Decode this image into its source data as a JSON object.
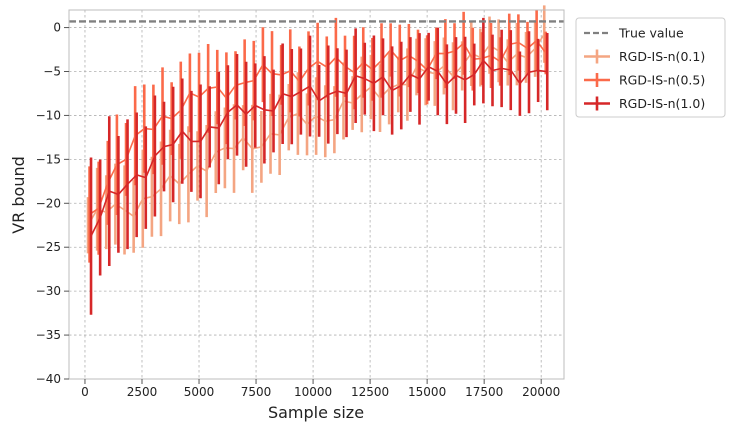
{
  "chart_data": {
    "type": "line",
    "xlabel": "Sample size",
    "ylabel": "VR bound",
    "xlim": [
      -700,
      21000
    ],
    "ylim": [
      -40,
      2
    ],
    "x_ticks": [
      {
        "value": 0,
        "label": "0"
      },
      {
        "value": 2500,
        "label": "2500"
      },
      {
        "value": 5000,
        "label": "5000"
      },
      {
        "value": 7500,
        "label": "7500"
      },
      {
        "value": 10000,
        "label": "10000"
      },
      {
        "value": 12500,
        "label": "12500"
      },
      {
        "value": 15000,
        "label": "15000"
      },
      {
        "value": 17500,
        "label": "17500"
      },
      {
        "value": 20000,
        "label": "20000"
      }
    ],
    "y_ticks": [
      {
        "value": 0,
        "label": "0"
      },
      {
        "value": -5,
        "label": "−5"
      },
      {
        "value": -10,
        "label": "−10"
      },
      {
        "value": -15,
        "label": "−15"
      },
      {
        "value": -20,
        "label": "−20"
      },
      {
        "value": -25,
        "label": "−25"
      },
      {
        "value": -30,
        "label": "−30"
      },
      {
        "value": -35,
        "label": "−35"
      },
      {
        "value": -40,
        "label": "−40"
      }
    ],
    "grid": true,
    "legend_placement": "outside-right-top",
    "reference_line": {
      "name": "True value",
      "y": 0.7,
      "color": "#808080",
      "style": "dashed"
    },
    "x_start": 200,
    "x_step": 400,
    "series": [
      {
        "name": "RGD-IS-n(0.1)",
        "color": "#f4a582",
        "anchors": [
          [
            200,
            -22.5
          ],
          [
            1000,
            -21
          ],
          [
            2000,
            -20.5
          ],
          [
            3000,
            -19
          ],
          [
            4000,
            -18
          ],
          [
            5000,
            -15.5
          ],
          [
            6000,
            -14.5
          ],
          [
            7000,
            -13.5
          ],
          [
            8000,
            -12.5
          ],
          [
            9000,
            -11
          ],
          [
            10000,
            -10.5
          ],
          [
            11000,
            -9.5
          ],
          [
            12000,
            -8.5
          ],
          [
            13000,
            -7
          ],
          [
            14000,
            -6
          ],
          [
            15000,
            -5.5
          ],
          [
            16000,
            -4.5
          ],
          [
            17000,
            -3.5
          ],
          [
            18000,
            -3
          ],
          [
            19000,
            -3
          ],
          [
            20000,
            -2
          ]
        ],
        "err_anchors": [
          [
            200,
            4
          ],
          [
            3000,
            5
          ],
          [
            10000,
            4
          ],
          [
            20000,
            3
          ]
        ]
      },
      {
        "name": "RGD-IS-n(0.5)",
        "color": "#fb6a4a",
        "anchors": [
          [
            200,
            -22
          ],
          [
            1000,
            -17
          ],
          [
            2000,
            -14
          ],
          [
            3000,
            -11
          ],
          [
            4000,
            -9
          ],
          [
            5000,
            -8
          ],
          [
            6000,
            -7
          ],
          [
            7000,
            -6
          ],
          [
            8000,
            -5.5
          ],
          [
            9000,
            -5
          ],
          [
            10000,
            -4.5
          ],
          [
            11000,
            -4.5
          ],
          [
            12000,
            -4
          ],
          [
            13000,
            -4
          ],
          [
            14000,
            -3.5
          ],
          [
            15000,
            -3.5
          ],
          [
            16000,
            -3
          ],
          [
            17000,
            -3
          ],
          [
            18000,
            -3
          ],
          [
            19000,
            -2.5
          ],
          [
            20000,
            -2
          ]
        ],
        "err_anchors": [
          [
            200,
            5
          ],
          [
            3000,
            5
          ],
          [
            10000,
            4
          ],
          [
            20000,
            3
          ]
        ]
      },
      {
        "name": "RGD-IS-n(1.0)",
        "color": "#d62728",
        "anchors": [
          [
            200,
            -23.5
          ],
          [
            1000,
            -20
          ],
          [
            2000,
            -17
          ],
          [
            3000,
            -15
          ],
          [
            4000,
            -13
          ],
          [
            5000,
            -12
          ],
          [
            6000,
            -10.5
          ],
          [
            7000,
            -9.5
          ],
          [
            8000,
            -8.5
          ],
          [
            9000,
            -8
          ],
          [
            10000,
            -7.5
          ],
          [
            11000,
            -7
          ],
          [
            12000,
            -6.5
          ],
          [
            13000,
            -6
          ],
          [
            14000,
            -6
          ],
          [
            15000,
            -5.5
          ],
          [
            16000,
            -5.5
          ],
          [
            17000,
            -5
          ],
          [
            18000,
            -5
          ],
          [
            19000,
            -5
          ],
          [
            20000,
            -5
          ]
        ],
        "err_anchors": [
          [
            200,
            8
          ],
          [
            3000,
            6
          ],
          [
            10000,
            5
          ],
          [
            20000,
            4
          ]
        ]
      }
    ]
  }
}
